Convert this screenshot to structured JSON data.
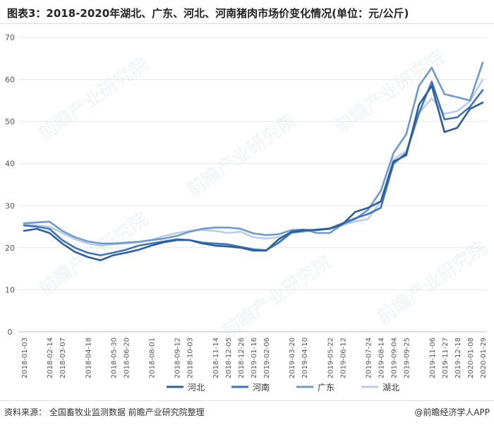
{
  "header": {
    "title": "图表3：2018-2020年湖北、广东、河北、河南猪肉市场价变化情况(单位：元/公斤)"
  },
  "footer": {
    "source": "资料来源：  全国畜牧业监测数据 前瞻产业研究院整理",
    "brand": "@前瞻经济学人APP"
  },
  "watermark": "前瞻产业研究院",
  "colors": {
    "hebei": "#2c5f99",
    "henan": "#3e74b8",
    "guangdong": "#6e99cf",
    "hubei": "#b9cde6",
    "grid": "#e6e6e6"
  },
  "chart_data": {
    "type": "line",
    "title": "图表3：2018-2020年湖北、广东、河北、河南猪肉市场价变化情况(单位：元/公斤)",
    "ylim": [
      0,
      70
    ],
    "yticks": [
      0,
      10,
      20,
      30,
      40,
      50,
      60,
      70
    ],
    "grid": true,
    "legend_position": "bottom",
    "categories": [
      "2018-01-03",
      "2018-01-24",
      "2018-02-14",
      "2018-03-07",
      "2018-03-28",
      "2018-04-18",
      "2018-05-09",
      "2018-05-30",
      "2018-06-20",
      "2018-07-11",
      "2018-08-01",
      "2018-08-22",
      "2018-09-12",
      "2018-10-03",
      "2018-10-24",
      "2018-11-14",
      "2018-12-05",
      "2018-12-26",
      "2019-01-16",
      "2019-02-06",
      "2019-02-27",
      "2019-03-20",
      "2019-04-10",
      "2019-05-01",
      "2019-05-22",
      "2019-06-12",
      "2019-07-03",
      "2019-07-24",
      "2019-08-14",
      "2019-09-04",
      "2019-09-25",
      "2019-10-16",
      "2019-11-06",
      "2019-11-27",
      "2019-12-18",
      "2020-01-08",
      "2020-01-29"
    ],
    "x_labels": [
      "2018-01-03",
      "2018-02-14",
      "2018-03-07",
      "2018-04-18",
      "2018-05-30",
      "2018-06-20",
      "2018-08-01",
      "2018-09-12",
      "2018-10-03",
      "2018-11-14",
      "2018-12-05",
      "2018-12-26",
      "2019-01-16",
      "2019-02-06",
      "2019-03-20",
      "2019-04-10",
      "2019-05-22",
      "2019-06-12",
      "2019-07-24",
      "2019-08-14",
      "2019-09-04",
      "2019-09-25",
      "2019-11-06",
      "2019-11-27",
      "2019-12-18",
      "2020-01-08",
      "2020-01-29"
    ],
    "series": [
      {
        "name": "河北",
        "color": "#2c5f99",
        "values": [
          24,
          24.5,
          23.5,
          21,
          19,
          17.8,
          17,
          18.2,
          18.8,
          19.5,
          20.5,
          21.3,
          21.8,
          21.8,
          21,
          20.5,
          20.3,
          20,
          19.3,
          19.3,
          22,
          23.8,
          24.2,
          24.2,
          24.5,
          25.6,
          28.5,
          29.5,
          31,
          40.5,
          42,
          54,
          58.5,
          47.5,
          48.5,
          53,
          54.5
        ]
      },
      {
        "name": "河南",
        "color": "#3e74b8",
        "values": [
          25.3,
          25,
          24.5,
          21.8,
          20,
          18.8,
          18.2,
          18.8,
          19.5,
          20.5,
          21,
          21.5,
          22,
          21.8,
          21.2,
          21,
          20.8,
          20.2,
          19.6,
          19.4,
          21.2,
          23.6,
          24,
          24.3,
          24.6,
          25.8,
          27,
          28,
          29.5,
          40,
          42.5,
          52,
          59.5,
          50.5,
          51,
          53.5,
          57.5
        ]
      },
      {
        "name": "广东",
        "color": "#6e99cf",
        "values": [
          25.8,
          26,
          26.2,
          24,
          22.5,
          21.5,
          21,
          21,
          21.2,
          21.4,
          21.8,
          22.2,
          22.8,
          23.8,
          24.5,
          24.8,
          24.8,
          24.5,
          23.4,
          23,
          23.2,
          24.2,
          24.3,
          23.5,
          23.5,
          25.6,
          26.8,
          29,
          33.5,
          42.5,
          47,
          58.5,
          62.8,
          56.5,
          55.8,
          55,
          64
        ]
      },
      {
        "name": "湖北",
        "color": "#b9cde6",
        "values": [
          25.5,
          25.3,
          25,
          23.5,
          22,
          21,
          20.5,
          20.8,
          21,
          21.3,
          21.8,
          22.8,
          23.5,
          24,
          24.2,
          24,
          23.5,
          23.8,
          22.5,
          22.2,
          22.5,
          23.5,
          23.8,
          24.2,
          24.5,
          25.4,
          26.2,
          26.8,
          31,
          41,
          43,
          52,
          55.5,
          51.8,
          52.5,
          54.8,
          60
        ]
      }
    ]
  }
}
